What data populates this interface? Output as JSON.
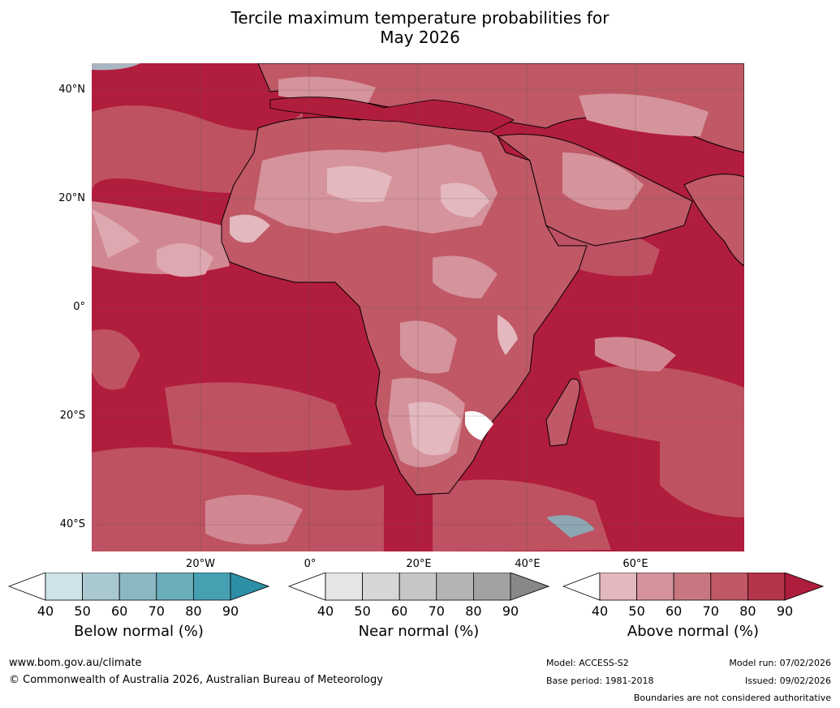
{
  "title_line1": "Tercile maximum temperature probabilities for",
  "title_line2": "May 2026",
  "lat_labels": [
    "40°N",
    "20°N",
    "0°",
    "20°S",
    "40°S"
  ],
  "lon_labels": [
    "20°W",
    "0°",
    "20°E",
    "40°E",
    "60°E"
  ],
  "colorbars": [
    {
      "title": "Below normal (%)",
      "ticks": [
        "40",
        "50",
        "60",
        "70",
        "80",
        "90"
      ],
      "colors": [
        "#cde2e9",
        "#a9c8cf",
        "#8ab7c2",
        "#6aadbb",
        "#46a0b2",
        "#2d8fa6"
      ]
    },
    {
      "title": "Near normal (%)",
      "ticks": [
        "40",
        "50",
        "60",
        "70",
        "80",
        "90"
      ],
      "colors": [
        "#e5e5e5",
        "#d6d6d6",
        "#c6c6c6",
        "#b4b4b4",
        "#a2a2a2",
        "#888888"
      ]
    },
    {
      "title": "Above normal (%)",
      "ticks": [
        "40",
        "50",
        "60",
        "70",
        "80",
        "90"
      ],
      "colors": [
        "#e3b8be",
        "#d5939c",
        "#c87780",
        "#c05866",
        "#b4344b",
        "#ae1d3c"
      ]
    }
  ],
  "footer": {
    "url": "www.bom.gov.au/climate",
    "copyright": "© Commonwealth of Australia 2026, Australian Bureau of Meteorology",
    "model": "Model: ACCESS-S2",
    "base_period": "Base period: 1981-2018",
    "model_run": "Model run: 07/02/2026",
    "issued": "Issued: 09/02/2026",
    "disclaimer": "Boundaries are not considered authoritative"
  },
  "map_colors": {
    "ocean_high": "#b11d3c",
    "land_mid": "#c05866",
    "land_light": "#d5939c",
    "land_pale": "#e3b8be",
    "near_normal": "#d6d6d6",
    "below_light": "#8ab7c2"
  }
}
